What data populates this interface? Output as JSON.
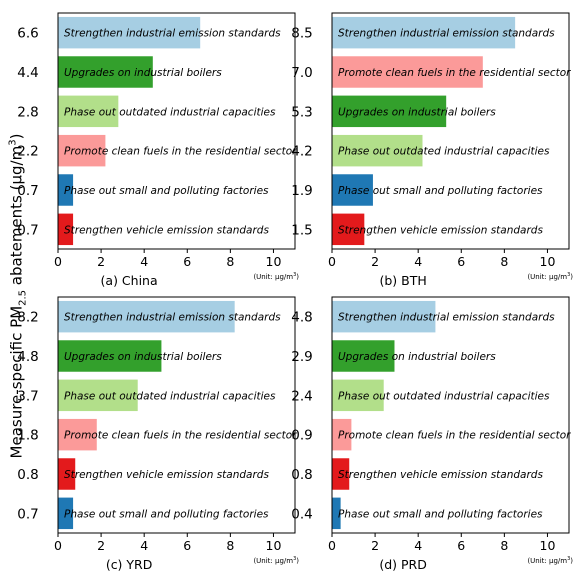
{
  "figure": {
    "ylabel_main": "Measure-specific PM",
    "ylabel_sub": "2.5",
    "ylabel_rest": " abatements (μg/m",
    "ylabel_sup": "3",
    "ylabel_end": ")",
    "unit_note": "(Unit: μg/m",
    "unit_sup": "3",
    "unit_end": ")"
  },
  "colors": {
    "light_blue": "#a6cee3",
    "dark_green": "#33a02c",
    "light_green": "#b2df8a",
    "pink": "#fb9a99",
    "dark_blue": "#1f78b4",
    "red": "#e31a1c"
  },
  "chart_data": [
    {
      "type": "bar",
      "orientation": "horizontal",
      "title": "(a) China",
      "xlim": [
        0,
        11
      ],
      "xticks": [
        0,
        2,
        4,
        6,
        8,
        10
      ],
      "categories": [
        "Strengthen industrial emission standards",
        "Upgrades on industrial boilers",
        "Phase out outdated industrial capacities",
        "Promote clean fuels in the residential sector",
        "Phase out small and polluting factories",
        "Strengthen vehicle emission standards"
      ],
      "values": [
        6.6,
        4.4,
        2.8,
        2.2,
        0.7,
        0.7
      ],
      "value_labels": [
        "6.6",
        "4.4",
        "2.8",
        "2.2",
        "0.7",
        "0.7"
      ],
      "colors": [
        "light_blue",
        "dark_green",
        "light_green",
        "pink",
        "dark_blue",
        "red"
      ]
    },
    {
      "type": "bar",
      "orientation": "horizontal",
      "title": "(b) BTH",
      "xlim": [
        0,
        11
      ],
      "xticks": [
        0,
        2,
        4,
        6,
        8,
        10
      ],
      "categories": [
        "Strengthen industrial emission standards",
        "Promote clean fuels in the residential sector",
        "Upgrades on industrial boilers",
        "Phase out outdated industrial capacities",
        "Phase out small and polluting factories",
        "Strengthen vehicle emission standards"
      ],
      "values": [
        8.5,
        7.0,
        5.3,
        4.2,
        1.9,
        1.5
      ],
      "value_labels": [
        "8.5",
        "7.0",
        "5.3",
        "4.2",
        "1.9",
        "1.5"
      ],
      "colors": [
        "light_blue",
        "pink",
        "dark_green",
        "light_green",
        "dark_blue",
        "red"
      ]
    },
    {
      "type": "bar",
      "orientation": "horizontal",
      "title": "(c) YRD",
      "xlim": [
        0,
        11
      ],
      "xticks": [
        0,
        2,
        4,
        6,
        8,
        10
      ],
      "categories": [
        "Strengthen industrial emission standards",
        "Upgrades on industrial boilers",
        "Phase out outdated industrial capacities",
        "Promote clean fuels in the residential sector",
        "Strengthen vehicle emission standards",
        "Phase out small and polluting factories"
      ],
      "values": [
        8.2,
        4.8,
        3.7,
        1.8,
        0.8,
        0.7
      ],
      "value_labels": [
        "8.2",
        "4.8",
        "3.7",
        "1.8",
        "0.8",
        "0.7"
      ],
      "colors": [
        "light_blue",
        "dark_green",
        "light_green",
        "pink",
        "red",
        "dark_blue"
      ]
    },
    {
      "type": "bar",
      "orientation": "horizontal",
      "title": "(d) PRD",
      "xlim": [
        0,
        11
      ],
      "xticks": [
        0,
        2,
        4,
        6,
        8,
        10
      ],
      "categories": [
        "Strengthen industrial emission standards",
        "Upgrades on industrial boilers",
        "Phase out outdated industrial capacities",
        "Promote clean fuels in the residential sector",
        "Strengthen vehicle emission standards",
        "Phase out small and polluting factories"
      ],
      "values": [
        4.8,
        2.9,
        2.4,
        0.9,
        0.8,
        0.4
      ],
      "value_labels": [
        "4.8",
        "2.9",
        "2.4",
        "0.9",
        "0.8",
        "0.4"
      ],
      "colors": [
        "light_blue",
        "dark_green",
        "light_green",
        "pink",
        "red",
        "dark_blue"
      ]
    }
  ]
}
